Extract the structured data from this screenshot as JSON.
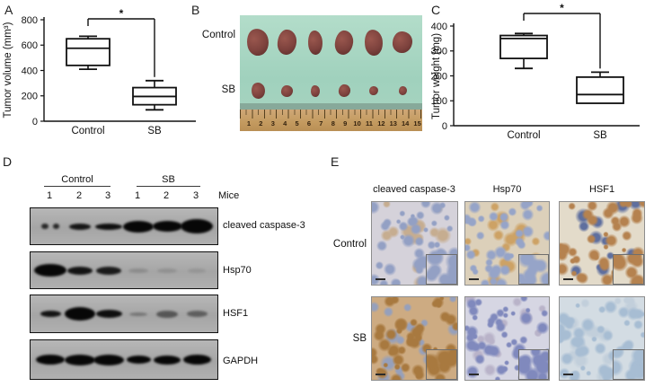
{
  "panels": {
    "A": {
      "label": "A"
    },
    "B": {
      "label": "B",
      "row_labels": [
        "Control",
        "SB"
      ],
      "ruler_numbers": [
        "1",
        "2",
        "3",
        "4",
        "5",
        "6",
        "7",
        "8",
        "9",
        "10",
        "11",
        "12",
        "13",
        "14",
        "15"
      ],
      "photo_colors": {
        "background": "#a4d2c0",
        "tumor": "#7d423d",
        "tumor_dark": "#5f2f2c",
        "ruler": "#c39a5f"
      },
      "control_tumors": [
        {
          "w": 24,
          "h": 30
        },
        {
          "w": 21,
          "h": 28
        },
        {
          "w": 16,
          "h": 27
        },
        {
          "w": 20,
          "h": 27
        },
        {
          "w": 20,
          "h": 29
        },
        {
          "w": 22,
          "h": 24
        }
      ],
      "sb_tumors": [
        {
          "w": 15,
          "h": 18
        },
        {
          "w": 13,
          "h": 13
        },
        {
          "w": 10,
          "h": 13
        },
        {
          "w": 13,
          "h": 14
        },
        {
          "w": 10,
          "h": 10
        },
        {
          "w": 9,
          "h": 10
        }
      ]
    },
    "C": {
      "label": "C"
    },
    "D": {
      "label": "D",
      "group_labels": [
        "Control",
        "SB"
      ],
      "lane_numbers": [
        "1",
        "2",
        "3",
        "1",
        "2",
        "3"
      ],
      "mice_label": "Mice",
      "blots": [
        {
          "label": "cleaved caspase-3",
          "bands": [
            {
              "w": 20,
              "h": 6,
              "o": 0.8,
              "split": true
            },
            {
              "w": 24,
              "h": 7,
              "o": 0.9
            },
            {
              "w": 30,
              "h": 7,
              "o": 0.95
            },
            {
              "w": 34,
              "h": 13,
              "o": 1
            },
            {
              "w": 33,
              "h": 12,
              "o": 1
            },
            {
              "w": 36,
              "h": 16,
              "o": 1
            }
          ]
        },
        {
          "label": "Hsp70",
          "bands": [
            {
              "w": 36,
              "h": 14,
              "o": 1
            },
            {
              "w": 28,
              "h": 9,
              "o": 0.92
            },
            {
              "w": 28,
              "h": 9,
              "o": 0.88
            },
            {
              "w": 22,
              "h": 5,
              "o": 0.16
            },
            {
              "w": 22,
              "h": 5,
              "o": 0.13
            },
            {
              "w": 20,
              "h": 5,
              "o": 0.1
            }
          ]
        },
        {
          "label": "HSF1",
          "bands": [
            {
              "w": 23,
              "h": 7,
              "o": 0.92
            },
            {
              "w": 34,
              "h": 15,
              "o": 1
            },
            {
              "w": 29,
              "h": 9,
              "o": 0.95
            },
            {
              "w": 20,
              "h": 4,
              "o": 0.3
            },
            {
              "w": 24,
              "h": 8,
              "o": 0.5
            },
            {
              "w": 23,
              "h": 7,
              "o": 0.45
            }
          ]
        },
        {
          "label": "GAPDH",
          "bands": [
            {
              "w": 32,
              "h": 11,
              "o": 1
            },
            {
              "w": 34,
              "h": 12,
              "o": 1
            },
            {
              "w": 34,
              "h": 12,
              "o": 1
            },
            {
              "w": 27,
              "h": 9,
              "o": 1
            },
            {
              "w": 30,
              "h": 10,
              "o": 1
            },
            {
              "w": 31,
              "h": 11,
              "o": 1
            }
          ]
        }
      ]
    },
    "E": {
      "label": "E",
      "col_labels": [
        "cleaved caspase-3",
        "Hsp70",
        "HSF1"
      ],
      "row_labels": [
        "Control",
        "SB"
      ],
      "tiles": [
        {
          "id": "control-cleaved-caspase-3",
          "base": "#d5d2da",
          "cell": "#93a0c4",
          "accent": "#c6ad90"
        },
        {
          "id": "control-hsp70",
          "base": "#dcd0ba",
          "cell": "#96a4c8",
          "accent": "#cda265"
        },
        {
          "id": "control-hsf1",
          "base": "#e3dbca",
          "cell": "#b5824f",
          "accent": "#5f6f9e"
        },
        {
          "id": "sb-cleaved-caspase-3",
          "base": "#cdab82",
          "cell": "#a8793f",
          "accent": "#96a0bb"
        },
        {
          "id": "sb-hsp70",
          "base": "#d6d6e3",
          "cell": "#8089bd",
          "accent": "#b9b3c9"
        },
        {
          "id": "sb-hsf1",
          "base": "#d3dce3",
          "cell": "#a7bdd3",
          "accent": "#c2cfdb"
        }
      ]
    }
  },
  "chart_data": [
    {
      "type": "box",
      "panel": "A",
      "title": "",
      "ylabel": "Tumor volume (mm³)",
      "xlabel": "",
      "categories": [
        "Control",
        "SB"
      ],
      "ylim": [
        0,
        800
      ],
      "yticks": [
        0,
        200,
        400,
        600,
        800
      ],
      "grid": false,
      "series": [
        {
          "name": "Control",
          "min": 410,
          "q1": 440,
          "median": 575,
          "q3": 650,
          "max": 670
        },
        {
          "name": "SB",
          "min": 90,
          "q1": 130,
          "median": 195,
          "q3": 265,
          "max": 320
        }
      ],
      "significance": {
        "symbol": "*",
        "between": [
          "Control",
          "SB"
        ]
      }
    },
    {
      "type": "box",
      "panel": "C",
      "title": "",
      "ylabel": "Tumor weight (mg)",
      "xlabel": "",
      "categories": [
        "Control",
        "SB"
      ],
      "ylim": [
        0,
        400
      ],
      "yticks": [
        0,
        100,
        200,
        300,
        400
      ],
      "grid": false,
      "series": [
        {
          "name": "Control",
          "min": 230,
          "q1": 270,
          "median": 350,
          "q3": 362,
          "max": 370
        },
        {
          "name": "SB",
          "min": 85,
          "q1": 90,
          "median": 125,
          "q3": 195,
          "max": 215
        }
      ],
      "significance": {
        "symbol": "*",
        "between": [
          "Control",
          "SB"
        ]
      }
    }
  ]
}
